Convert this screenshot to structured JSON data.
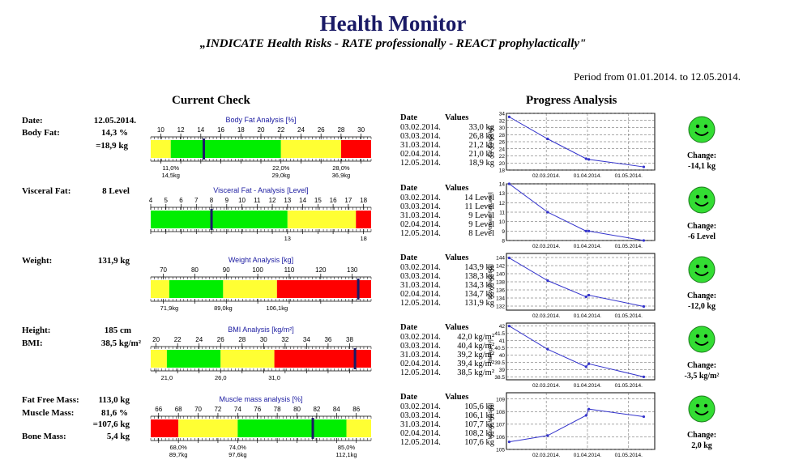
{
  "header": {
    "title": "Health Monitor",
    "subtitle": "„INDICATE Health Risks - RATE professionally - REACT prophylactically\"",
    "period": "Period from 01.01.2014. to 12.05.2014."
  },
  "sections": {
    "current": "Current Check",
    "progress": "Progress Analysis"
  },
  "colors": {
    "yellow": "#ffff33",
    "green": "#00ee00",
    "red": "#ff0000",
    "accent": "#1a1a66",
    "line": "#3333cc"
  },
  "left": [
    {
      "label": "Date:",
      "value": "12.05.2014."
    },
    {
      "label": "Body Fat:",
      "value": "14,3 %"
    },
    {
      "label": "",
      "value": "=18,9 kg"
    },
    {
      "label": "Visceral Fat:",
      "value": "8 Level"
    },
    {
      "label": "Weight:",
      "value": "131,9 kg"
    },
    {
      "label": "Height:",
      "value": "185 cm"
    },
    {
      "label": "BMI:",
      "value": "38,5 kg/m²"
    },
    {
      "label": "Fat Free Mass:",
      "value": "113,0 kg"
    },
    {
      "label": "Muscle Mass:",
      "value": "81,6 %"
    },
    {
      "label": "",
      "value": "=107,6 kg"
    },
    {
      "label": "Bone Mass:",
      "value": "5,4 kg"
    }
  ],
  "gauges": [
    {
      "title": "Body Fat Analysis [%]",
      "min": 9,
      "max": 31,
      "ticks": [
        10,
        12,
        14,
        16,
        18,
        20,
        22,
        24,
        26,
        28,
        30
      ],
      "bands": [
        [
          9,
          11,
          "yellow"
        ],
        [
          11,
          22,
          "green"
        ],
        [
          22,
          28,
          "yellow"
        ],
        [
          28,
          31,
          "red"
        ]
      ],
      "marker": 14.3,
      "bottom": [
        {
          "at": 11,
          "l1": "11,0%",
          "l2": "14,5kg"
        },
        {
          "at": 22,
          "l1": "22,0%",
          "l2": "29,0kg"
        },
        {
          "at": 28,
          "l1": "28,0%",
          "l2": "36,9kg"
        }
      ]
    },
    {
      "title": "Visceral Fat - Analysis [Level]",
      "min": 4,
      "max": 18.5,
      "ticks": [
        4,
        5,
        6,
        7,
        8,
        9,
        10,
        11,
        12,
        13,
        14,
        15,
        16,
        17,
        18
      ],
      "bands": [
        [
          4,
          13,
          "green"
        ],
        [
          13,
          17.5,
          "yellow"
        ],
        [
          17.5,
          18.5,
          "red"
        ]
      ],
      "marker": 8,
      "bottom": [
        {
          "at": 13,
          "l1": "13",
          "l2": ""
        },
        {
          "at": 18,
          "l1": "18",
          "l2": ""
        }
      ]
    },
    {
      "title": "Weight Analysis [kg]",
      "min": 66,
      "max": 136,
      "ticks": [
        70,
        80,
        90,
        100,
        110,
        120,
        130
      ],
      "bands": [
        [
          66,
          71.9,
          "yellow"
        ],
        [
          71.9,
          89,
          "green"
        ],
        [
          89,
          106.1,
          "yellow"
        ],
        [
          106.1,
          136,
          "red"
        ]
      ],
      "marker": 131.9,
      "bottom": [
        {
          "at": 71.9,
          "l1": "71,9kg",
          "l2": ""
        },
        {
          "at": 89,
          "l1": "89,0kg",
          "l2": ""
        },
        {
          "at": 106.1,
          "l1": "106,1kg",
          "l2": ""
        }
      ]
    },
    {
      "title": "BMI Analysis [kg/m²]",
      "min": 19.5,
      "max": 40,
      "ticks": [
        20,
        22,
        24,
        26,
        28,
        30,
        32,
        34,
        36,
        38
      ],
      "bands": [
        [
          19.5,
          21,
          "yellow"
        ],
        [
          21,
          26,
          "green"
        ],
        [
          26,
          31,
          "yellow"
        ],
        [
          31,
          40,
          "red"
        ]
      ],
      "marker": 38.5,
      "bottom": [
        {
          "at": 21,
          "l1": "21,0",
          "l2": ""
        },
        {
          "at": 26,
          "l1": "26,0",
          "l2": ""
        },
        {
          "at": 31,
          "l1": "31,0",
          "l2": ""
        }
      ]
    },
    {
      "title": "Muscle mass analysis [%]",
      "min": 65.2,
      "max": 87.5,
      "ticks": [
        66,
        68,
        70,
        72,
        74,
        76,
        78,
        80,
        82,
        84,
        86
      ],
      "bands": [
        [
          65.2,
          68,
          "red"
        ],
        [
          68,
          74,
          "yellow"
        ],
        [
          74,
          85,
          "green"
        ],
        [
          85,
          87.5,
          "yellow"
        ]
      ],
      "marker": 81.6,
      "bottom": [
        {
          "at": 68,
          "l1": "68,0%",
          "l2": "89,7kg"
        },
        {
          "at": 74,
          "l1": "74,0%",
          "l2": "97,6kg"
        },
        {
          "at": 85,
          "l1": "85,0%",
          "l2": "112,1kg"
        }
      ]
    }
  ],
  "tables": [
    {
      "head": [
        "Date",
        "Values"
      ],
      "rows": [
        [
          "03.02.2014.",
          "33,0 kg"
        ],
        [
          "03.03.2014.",
          "26,8 kg"
        ],
        [
          "31.03.2014.",
          "21,2 kg"
        ],
        [
          "02.04.2014.",
          "21,0 kg"
        ],
        [
          "12.05.2014.",
          "18,9 kg"
        ]
      ]
    },
    {
      "head": [
        "Date",
        "Values"
      ],
      "rows": [
        [
          "03.02.2014.",
          "14 Level"
        ],
        [
          "03.03.2014.",
          "11 Level"
        ],
        [
          "31.03.2014.",
          "9 Level"
        ],
        [
          "02.04.2014.",
          "9 Level"
        ],
        [
          "12.05.2014.",
          "8 Level"
        ]
      ]
    },
    {
      "head": [
        "Date",
        "Values"
      ],
      "rows": [
        [
          "03.02.2014.",
          "143,9 kg"
        ],
        [
          "03.03.2014.",
          "138,3 kg"
        ],
        [
          "31.03.2014.",
          "134,3 kg"
        ],
        [
          "02.04.2014.",
          "134,7 kg"
        ],
        [
          "12.05.2014.",
          "131,9 kg"
        ]
      ]
    },
    {
      "head": [
        "Date",
        "Values"
      ],
      "rows": [
        [
          "03.02.2014.",
          "42,0 kg/m²"
        ],
        [
          "03.03.2014.",
          "40,4 kg/m²"
        ],
        [
          "31.03.2014.",
          "39,2 kg/m²"
        ],
        [
          "02.04.2014.",
          "39,4 kg/m²"
        ],
        [
          "12.05.2014.",
          "38,5 kg/m²"
        ]
      ]
    },
    {
      "head": [
        "Date",
        "Values"
      ],
      "rows": [
        [
          "03.02.2014.",
          "105,6 kg"
        ],
        [
          "03.03.2014.",
          "106,1 kg"
        ],
        [
          "31.03.2014.",
          "107,7 kg"
        ],
        [
          "02.04.2014.",
          "108,2 kg"
        ],
        [
          "12.05.2014.",
          "107,6 kg"
        ]
      ]
    }
  ],
  "changes": [
    {
      "label": "Change:",
      "value": "-14,1 kg",
      "icon": "smiley-icon"
    },
    {
      "label": "Change:",
      "value": "-6 Level",
      "icon": "smiley-icon"
    },
    {
      "label": "Change:",
      "value": "-12,0 kg",
      "icon": "smiley-icon"
    },
    {
      "label": "Change:",
      "value": "-3,5 kg/m²",
      "icon": "smiley-icon"
    },
    {
      "label": "Change:",
      "value": "2,0 kg",
      "icon": "smiley-icon"
    }
  ],
  "chart_data": [
    {
      "type": "line",
      "ylabel": "Fat Range[kg]",
      "x": [
        "03.02.2014.",
        "03.03.2014.",
        "31.03.2014.",
        "02.04.2014.",
        "12.05.2014."
      ],
      "x_ticks": [
        "02.03.2014.",
        "01.04.2014.",
        "01.05.2014."
      ],
      "y_ticks": [
        18,
        20,
        22,
        24,
        26,
        28,
        30,
        32,
        34
      ],
      "values": [
        33.0,
        26.8,
        21.2,
        21.0,
        18.9
      ],
      "ylim": [
        18,
        34
      ],
      "grid": true
    },
    {
      "type": "line",
      "ylabel": "Visceral Fat[Level]",
      "x": [
        "03.02.2014.",
        "03.03.2014.",
        "31.03.2014.",
        "02.04.2014.",
        "12.05.2014."
      ],
      "x_ticks": [
        "02.03.2014.",
        "01.04.2014.",
        "01.05.2014."
      ],
      "y_ticks": [
        8,
        9,
        10,
        11,
        12,
        13,
        14
      ],
      "values": [
        14,
        11,
        9,
        9,
        8
      ],
      "ylim": [
        8,
        14
      ],
      "grid": true
    },
    {
      "type": "line",
      "ylabel": "Body Weight[kg]",
      "x": [
        "03.02.2014.",
        "03.03.2014.",
        "31.03.2014.",
        "02.04.2014.",
        "12.05.2014."
      ],
      "x_ticks": [
        "02.03.2014.",
        "01.04.2014.",
        "01.05.2014."
      ],
      "y_ticks": [
        132,
        134,
        136,
        138,
        140,
        142,
        144
      ],
      "values": [
        143.9,
        138.3,
        134.3,
        134.7,
        131.9
      ],
      "ylim": [
        131,
        145
      ],
      "grid": true
    },
    {
      "type": "line",
      "ylabel": "BMI[kg/m²]",
      "x": [
        "03.02.2014.",
        "03.03.2014.",
        "31.03.2014.",
        "02.04.2014.",
        "12.05.2014."
      ],
      "x_ticks": [
        "02.03.2014.",
        "01.04.2014.",
        "01.05.2014."
      ],
      "y_ticks": [
        38.5,
        39,
        39.5,
        40,
        40.5,
        41,
        41.5,
        42
      ],
      "values": [
        42.0,
        40.4,
        39.2,
        39.4,
        38.5
      ],
      "ylim": [
        38.3,
        42.2
      ],
      "grid": true
    },
    {
      "type": "line",
      "ylabel": "Muscle Mass[kg]",
      "x": [
        "03.02.2014.",
        "03.03.2014.",
        "31.03.2014.",
        "02.04.2014.",
        "12.05.2014."
      ],
      "x_ticks": [
        "02.03.2014.",
        "01.04.2014.",
        "01.05.2014."
      ],
      "y_ticks": [
        105,
        106,
        107,
        108,
        109
      ],
      "values": [
        105.6,
        106.1,
        107.7,
        108.2,
        107.6
      ],
      "ylim": [
        105,
        109.5
      ],
      "grid": true
    }
  ]
}
